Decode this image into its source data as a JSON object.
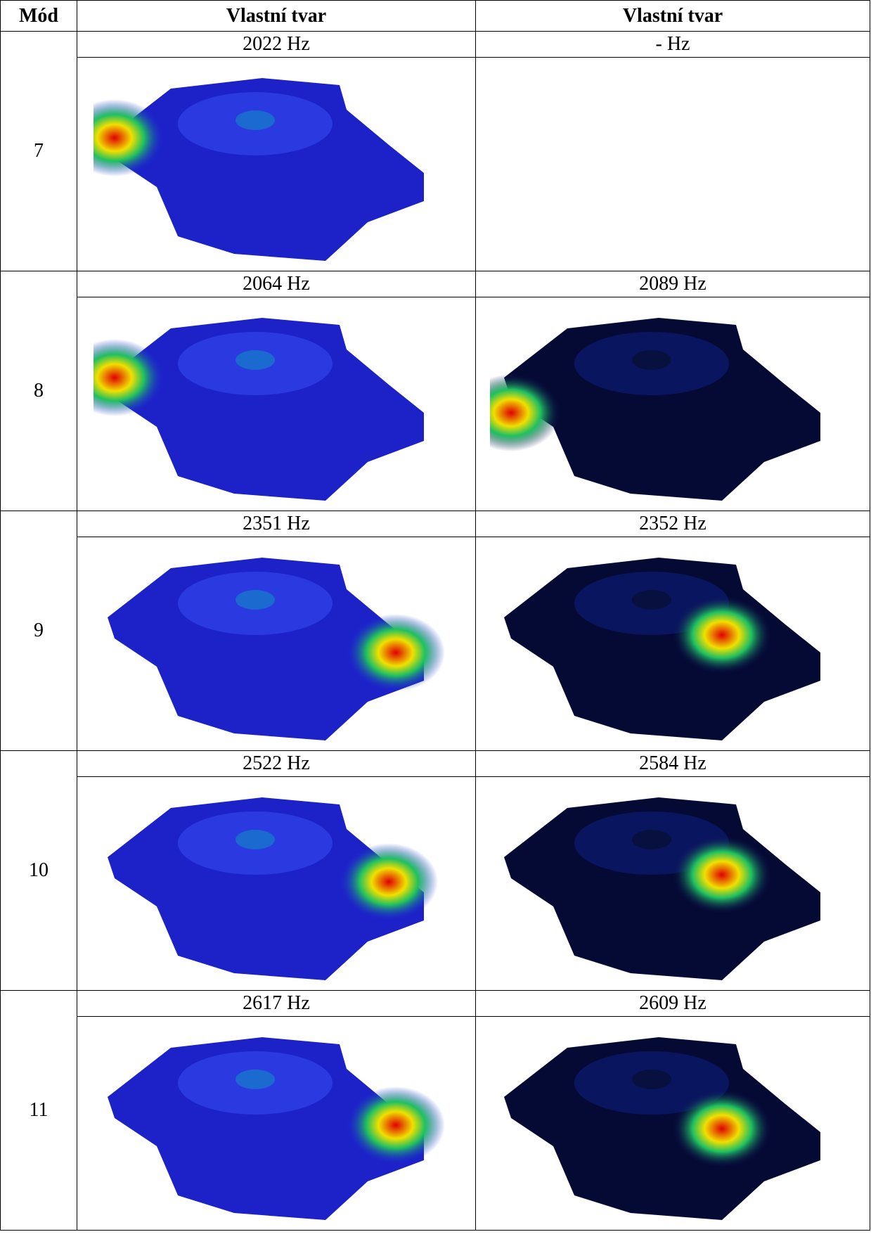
{
  "header": [
    "Mód",
    "Vlastní tvar",
    "Vlastní tvar"
  ],
  "rows": [
    {
      "mode": "7",
      "freq": [
        "2022 Hz",
        "- Hz"
      ]
    },
    {
      "mode": "8",
      "freq": [
        "2064 Hz",
        "2089 Hz"
      ]
    },
    {
      "mode": "9",
      "freq": [
        "2351 Hz",
        "2352 Hz"
      ]
    },
    {
      "mode": "10",
      "freq": [
        "2522 Hz",
        "2584 Hz"
      ]
    },
    {
      "mode": "11",
      "freq": [
        "2617 Hz",
        "2609 Hz"
      ]
    }
  ]
}
